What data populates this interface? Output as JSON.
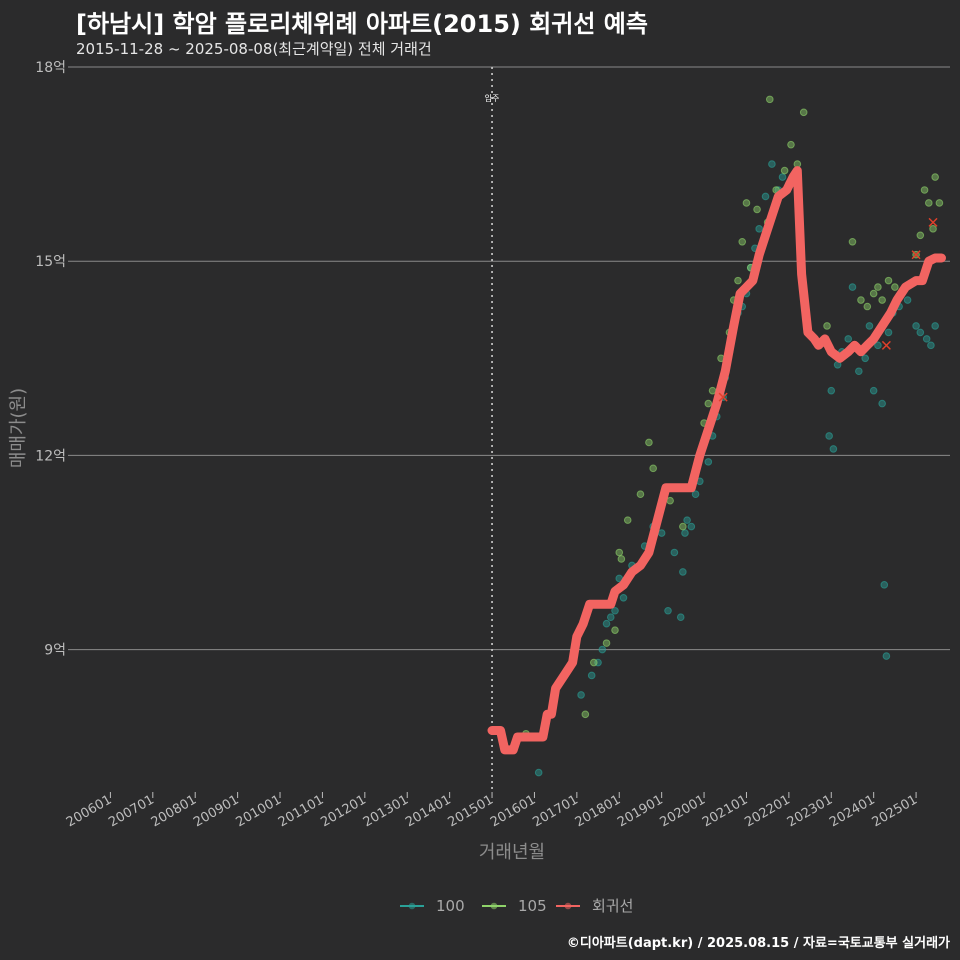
{
  "header": {
    "title": "[하남시] 학암 플로리체위례 아파트(2015) 회귀선 예측",
    "subtitle": "2015-11-28 ~ 2025-08-08(최근계약일) 전체 거래건"
  },
  "footer": {
    "credit": "©디아파트(dapt.kr) / 2025.08.15 / 자료=국토교통부 실거래가"
  },
  "colors": {
    "background": "#2b2b2c",
    "grid": "#8a8a8a",
    "series_100": "#2aa198",
    "series_105": "#8fd36a",
    "regression": "#f26461"
  },
  "chart_data": {
    "type": "scatter",
    "title": "[하남시] 학암 플로리체위례 아파트(2015) 회귀선 예측",
    "xlabel": "거래년월",
    "ylabel": "매매가(원)",
    "xlim": [
      2005.0,
      2025.8
    ],
    "ylim": [
      6.8,
      18
    ],
    "y_ticks": [
      {
        "v": 9,
        "label": "9억"
      },
      {
        "v": 12,
        "label": "12억"
      },
      {
        "v": 15,
        "label": "15억"
      },
      {
        "v": 18,
        "label": "18억"
      }
    ],
    "x_ticks": [
      {
        "v": 2006,
        "label": "200601"
      },
      {
        "v": 2007,
        "label": "200701"
      },
      {
        "v": 2008,
        "label": "200801"
      },
      {
        "v": 2009,
        "label": "200901"
      },
      {
        "v": 2010,
        "label": "201001"
      },
      {
        "v": 2011,
        "label": "201101"
      },
      {
        "v": 2012,
        "label": "201201"
      },
      {
        "v": 2013,
        "label": "201301"
      },
      {
        "v": 2014,
        "label": "201401"
      },
      {
        "v": 2015,
        "label": "201501"
      },
      {
        "v": 2016,
        "label": "201601"
      },
      {
        "v": 2017,
        "label": "201701"
      },
      {
        "v": 2018,
        "label": "201801"
      },
      {
        "v": 2019,
        "label": "201901"
      },
      {
        "v": 2020,
        "label": "202001"
      },
      {
        "v": 2021,
        "label": "202101"
      },
      {
        "v": 2022,
        "label": "202201"
      },
      {
        "v": 2023,
        "label": "202301"
      },
      {
        "v": 2024,
        "label": "202401"
      },
      {
        "v": 2025,
        "label": "202501"
      }
    ],
    "annotation": {
      "x": 2015.0,
      "label": "입주"
    },
    "legend": [
      {
        "key": "100",
        "label": "100"
      },
      {
        "key": "105",
        "label": "105"
      },
      {
        "key": "regression",
        "label": "회귀선"
      }
    ],
    "series": [
      {
        "name": "100",
        "points": [
          [
            2016.1,
            7.1
          ],
          [
            2017.1,
            8.3
          ],
          [
            2017.35,
            8.6
          ],
          [
            2017.5,
            8.8
          ],
          [
            2017.6,
            9.0
          ],
          [
            2017.7,
            9.4
          ],
          [
            2017.8,
            9.5
          ],
          [
            2017.9,
            9.6
          ],
          [
            2018.0,
            10.1
          ],
          [
            2018.1,
            9.8
          ],
          [
            2018.3,
            10.3
          ],
          [
            2018.6,
            10.6
          ],
          [
            2018.8,
            10.9
          ],
          [
            2019.0,
            10.8
          ],
          [
            2019.15,
            9.6
          ],
          [
            2019.3,
            10.5
          ],
          [
            2019.45,
            9.5
          ],
          [
            2019.5,
            10.2
          ],
          [
            2019.55,
            10.8
          ],
          [
            2019.6,
            11.0
          ],
          [
            2019.7,
            10.9
          ],
          [
            2019.8,
            11.4
          ],
          [
            2019.9,
            11.6
          ],
          [
            2020.1,
            11.9
          ],
          [
            2020.2,
            12.3
          ],
          [
            2020.3,
            12.6
          ],
          [
            2020.45,
            12.9
          ],
          [
            2020.5,
            13.2
          ],
          [
            2020.6,
            13.6
          ],
          [
            2020.7,
            14.0
          ],
          [
            2020.8,
            14.2
          ],
          [
            2020.9,
            14.3
          ],
          [
            2021.0,
            14.5
          ],
          [
            2021.1,
            14.9
          ],
          [
            2021.2,
            15.2
          ],
          [
            2021.3,
            15.5
          ],
          [
            2021.45,
            16.0
          ],
          [
            2021.6,
            16.5
          ],
          [
            2021.75,
            16.1
          ],
          [
            2021.85,
            16.3
          ],
          [
            2022.0,
            16.2
          ],
          [
            2022.95,
            12.3
          ],
          [
            2023.05,
            12.1
          ],
          [
            2023.0,
            13.0
          ],
          [
            2023.15,
            13.4
          ],
          [
            2023.25,
            13.6
          ],
          [
            2023.4,
            13.8
          ],
          [
            2023.5,
            14.6
          ],
          [
            2023.65,
            13.3
          ],
          [
            2023.8,
            13.5
          ],
          [
            2023.9,
            14.0
          ],
          [
            2024.0,
            13.0
          ],
          [
            2024.1,
            13.7
          ],
          [
            2024.2,
            12.8
          ],
          [
            2024.25,
            10.0
          ],
          [
            2024.3,
            8.9
          ],
          [
            2024.35,
            13.9
          ],
          [
            2024.45,
            14.2
          ],
          [
            2024.6,
            14.3
          ],
          [
            2024.8,
            14.4
          ],
          [
            2025.0,
            14.0
          ],
          [
            2025.1,
            13.9
          ],
          [
            2025.25,
            13.8
          ],
          [
            2025.35,
            13.7
          ],
          [
            2025.45,
            14.0
          ]
        ]
      },
      {
        "name": "105",
        "points": [
          [
            2015.8,
            7.7
          ],
          [
            2017.2,
            8.0
          ],
          [
            2017.4,
            8.8
          ],
          [
            2017.7,
            9.1
          ],
          [
            2017.9,
            9.3
          ],
          [
            2018.0,
            10.5
          ],
          [
            2018.05,
            10.4
          ],
          [
            2018.2,
            11.0
          ],
          [
            2018.5,
            11.4
          ],
          [
            2018.7,
            12.2
          ],
          [
            2018.8,
            11.8
          ],
          [
            2019.2,
            11.3
          ],
          [
            2019.5,
            10.9
          ],
          [
            2019.75,
            11.6
          ],
          [
            2019.95,
            12.1
          ],
          [
            2020.0,
            12.5
          ],
          [
            2020.1,
            12.8
          ],
          [
            2020.2,
            13.0
          ],
          [
            2020.4,
            13.5
          ],
          [
            2020.6,
            13.9
          ],
          [
            2020.7,
            14.4
          ],
          [
            2020.8,
            14.7
          ],
          [
            2020.9,
            15.3
          ],
          [
            2021.0,
            15.9
          ],
          [
            2021.1,
            14.9
          ],
          [
            2021.25,
            15.8
          ],
          [
            2021.5,
            15.6
          ],
          [
            2021.7,
            16.1
          ],
          [
            2021.9,
            16.4
          ],
          [
            2022.05,
            16.8
          ],
          [
            2022.2,
            16.5
          ],
          [
            2022.35,
            17.3
          ],
          [
            2021.55,
            17.5
          ],
          [
            2023.5,
            15.3
          ],
          [
            2023.7,
            14.4
          ],
          [
            2023.85,
            14.3
          ],
          [
            2024.0,
            14.5
          ],
          [
            2024.1,
            14.6
          ],
          [
            2024.2,
            14.4
          ],
          [
            2024.35,
            14.7
          ],
          [
            2024.5,
            14.6
          ],
          [
            2025.0,
            15.1
          ],
          [
            2025.1,
            15.4
          ],
          [
            2025.2,
            16.1
          ],
          [
            2025.3,
            15.9
          ],
          [
            2025.4,
            15.5
          ],
          [
            2025.45,
            16.3
          ],
          [
            2025.55,
            15.9
          ],
          [
            2022.9,
            14.0
          ]
        ]
      },
      {
        "name": "회귀선",
        "points": [
          [
            2015.0,
            7.75
          ],
          [
            2015.2,
            7.75
          ],
          [
            2015.3,
            7.45
          ],
          [
            2015.5,
            7.45
          ],
          [
            2015.6,
            7.65
          ],
          [
            2016.2,
            7.65
          ],
          [
            2016.3,
            8.0
          ],
          [
            2016.4,
            8.0
          ],
          [
            2016.5,
            8.4
          ],
          [
            2016.7,
            8.6
          ],
          [
            2016.9,
            8.8
          ],
          [
            2017.0,
            9.2
          ],
          [
            2017.15,
            9.4
          ],
          [
            2017.3,
            9.7
          ],
          [
            2017.8,
            9.7
          ],
          [
            2017.9,
            9.9
          ],
          [
            2018.1,
            10.0
          ],
          [
            2018.3,
            10.2
          ],
          [
            2018.5,
            10.3
          ],
          [
            2018.7,
            10.5
          ],
          [
            2018.9,
            11.0
          ],
          [
            2019.1,
            11.5
          ],
          [
            2019.7,
            11.5
          ],
          [
            2019.9,
            12.0
          ],
          [
            2020.1,
            12.4
          ],
          [
            2020.3,
            12.8
          ],
          [
            2020.5,
            13.3
          ],
          [
            2020.7,
            14.0
          ],
          [
            2020.85,
            14.5
          ],
          [
            2021.0,
            14.6
          ],
          [
            2021.15,
            14.7
          ],
          [
            2021.3,
            15.1
          ],
          [
            2021.45,
            15.4
          ],
          [
            2021.6,
            15.7
          ],
          [
            2021.75,
            16.0
          ],
          [
            2021.95,
            16.1
          ],
          [
            2022.1,
            16.3
          ],
          [
            2022.2,
            16.4
          ],
          [
            2022.3,
            14.8
          ],
          [
            2022.45,
            13.9
          ],
          [
            2022.6,
            13.8
          ],
          [
            2022.7,
            13.7
          ],
          [
            2022.85,
            13.8
          ],
          [
            2023.0,
            13.6
          ],
          [
            2023.2,
            13.5
          ],
          [
            2023.4,
            13.6
          ],
          [
            2023.55,
            13.7
          ],
          [
            2023.7,
            13.6
          ],
          [
            2023.85,
            13.7
          ],
          [
            2024.0,
            13.8
          ],
          [
            2024.2,
            14.0
          ],
          [
            2024.4,
            14.2
          ],
          [
            2024.55,
            14.4
          ],
          [
            2024.75,
            14.6
          ],
          [
            2025.0,
            14.7
          ],
          [
            2025.15,
            14.7
          ],
          [
            2025.3,
            15.0
          ],
          [
            2025.45,
            15.05
          ],
          [
            2025.6,
            15.05
          ]
        ]
      }
    ]
  }
}
